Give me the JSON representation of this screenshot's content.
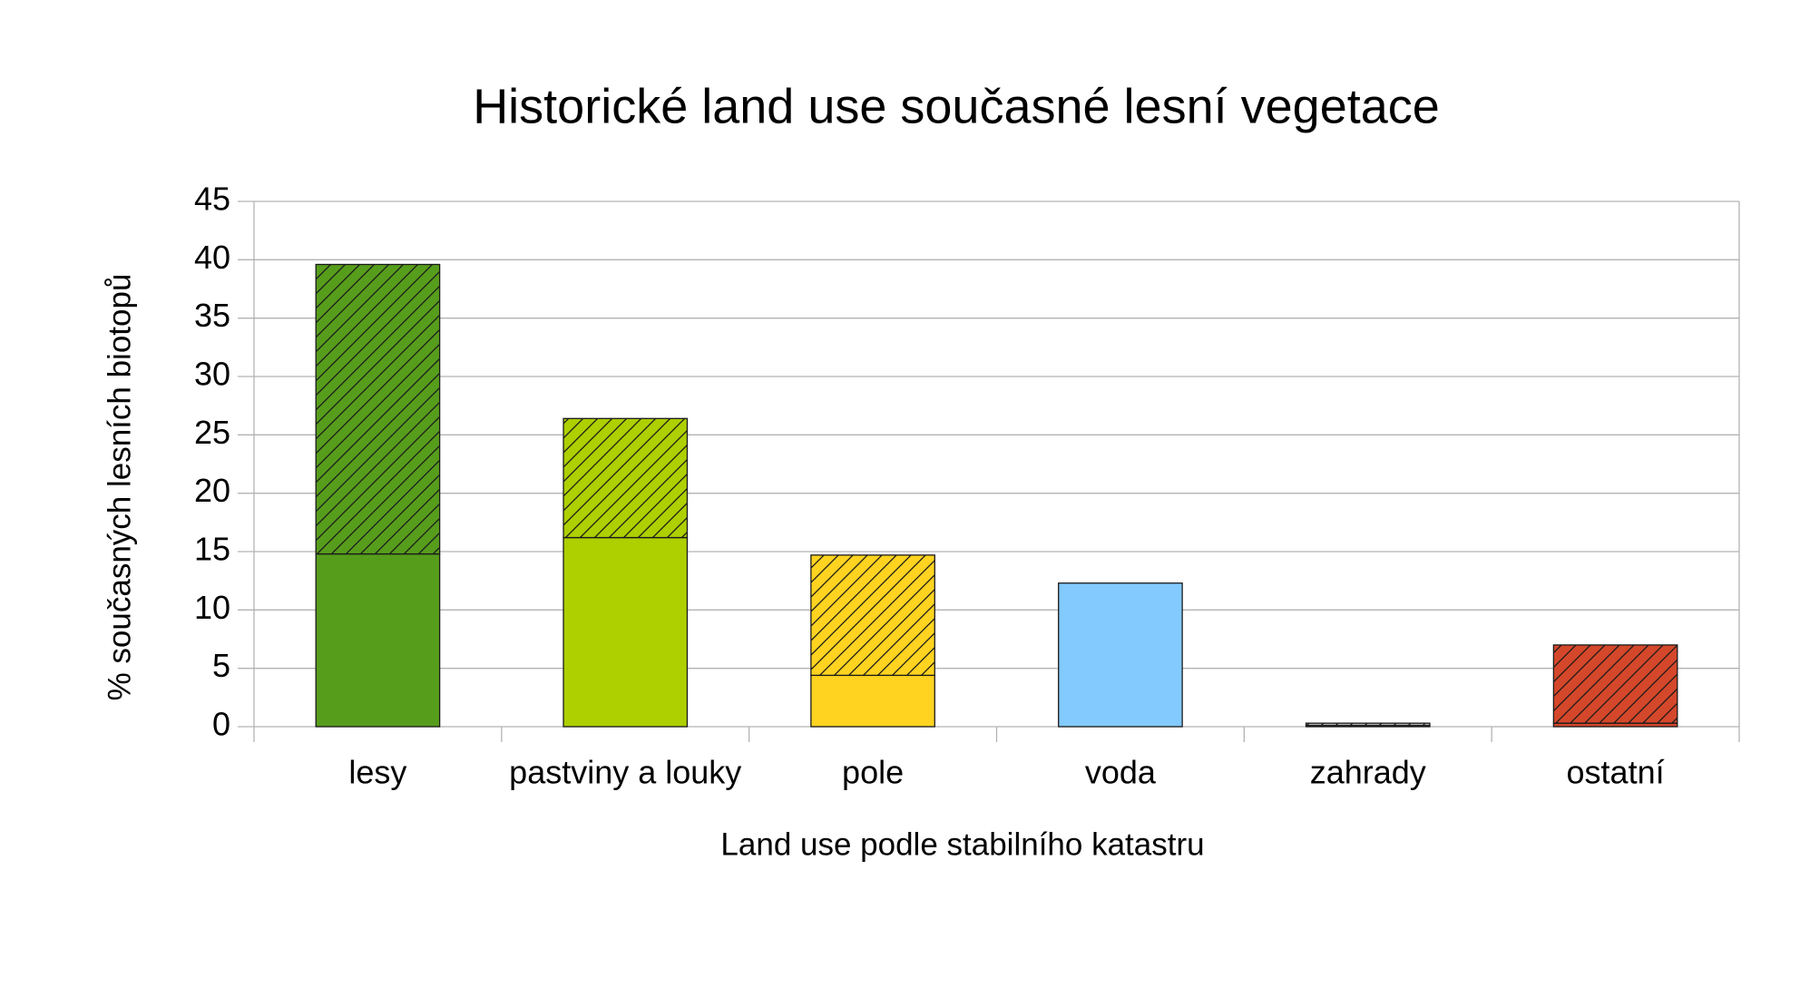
{
  "chart_data": {
    "type": "stacked_bar",
    "title": "Historické land use současné lesní vegetace",
    "x_label": "Land use podle stabilního katastru",
    "y_label": "% současných lesních biotopů",
    "categories": [
      "lesy",
      "pastviny a louky",
      "pole",
      "voda",
      "zahrady",
      "ostatní"
    ],
    "colors": [
      "#579d1c",
      "#aecf00",
      "#ffd320",
      "#83caff",
      "#b3b3b3",
      "#d4472a"
    ],
    "series": [
      {
        "values": [
          14.8,
          16.2,
          4.4,
          12.3,
          0.1,
          0.3
        ]
      },
      {
        "values": [
          24.8,
          10.2,
          10.3,
          0,
          0.2,
          6.7
        ],
        "pattern": "hatch"
      }
    ],
    "ylim": [
      0,
      45
    ],
    "yticks": [
      0,
      5,
      10,
      15,
      20,
      25,
      30,
      35,
      40,
      45
    ],
    "grid": true
  }
}
